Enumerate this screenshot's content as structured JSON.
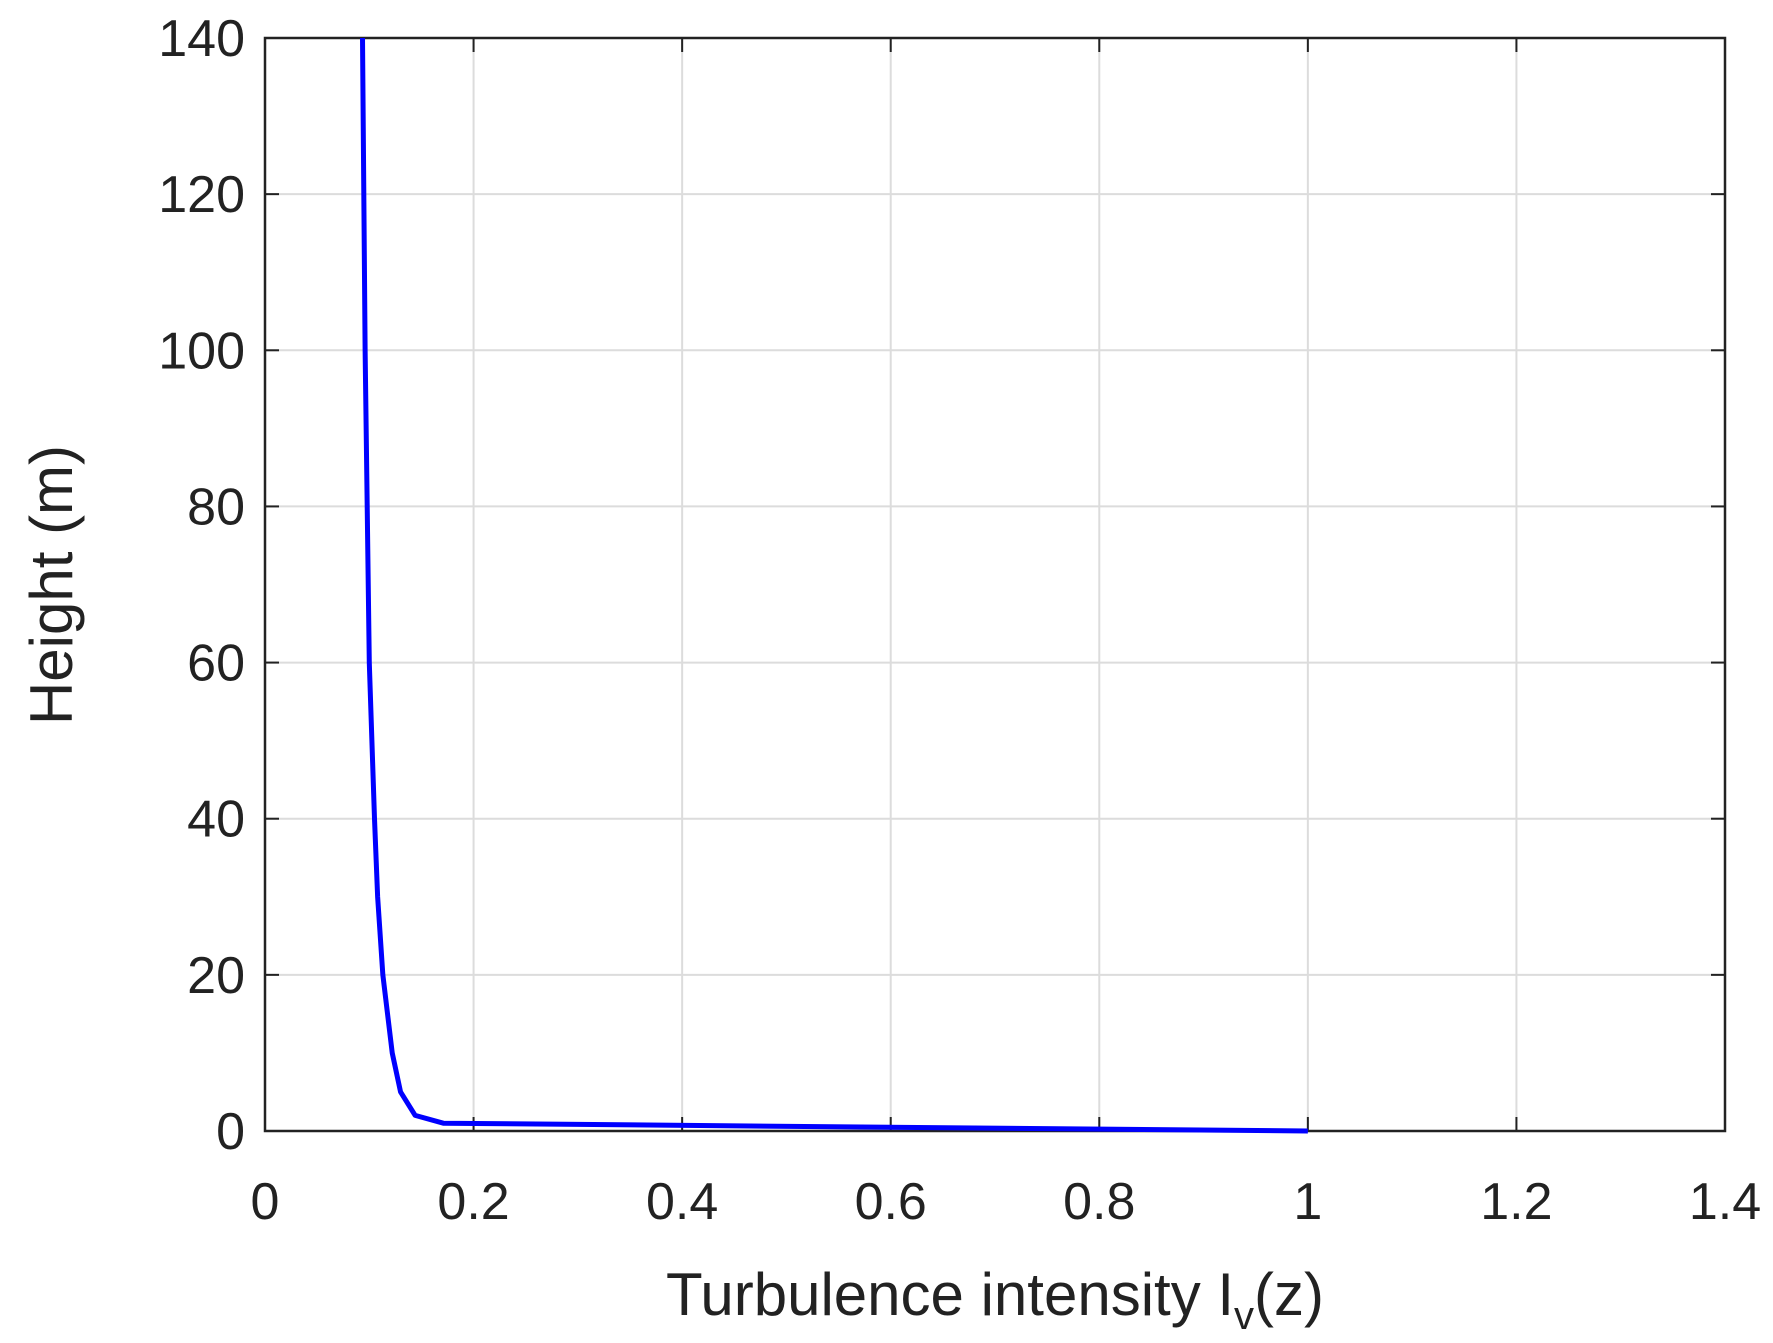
{
  "chart_data": {
    "type": "line",
    "xlabel": [
      "Turbulence intensity I",
      "v",
      "(z)"
    ],
    "ylabel": "Height (m)",
    "x": [
      1,
      0.171,
      0.144,
      0.13,
      0.122,
      0.113,
      0.108,
      0.105,
      0.1,
      0.098,
      0.096,
      0.0935
    ],
    "series": [
      {
        "color": "#0000ff",
        "values": [
          0,
          1,
          2,
          5,
          10,
          20,
          30,
          40,
          60,
          80,
          100,
          140
        ]
      }
    ],
    "xlim": [
      0,
      1.4
    ],
    "xticks": [
      0,
      0.2,
      0.4,
      0.6,
      0.8,
      1,
      1.2,
      1.4
    ],
    "ylim": [
      0,
      140
    ],
    "yticks": [
      0,
      20,
      40,
      60,
      80,
      100,
      120,
      140
    ],
    "grid": true
  }
}
